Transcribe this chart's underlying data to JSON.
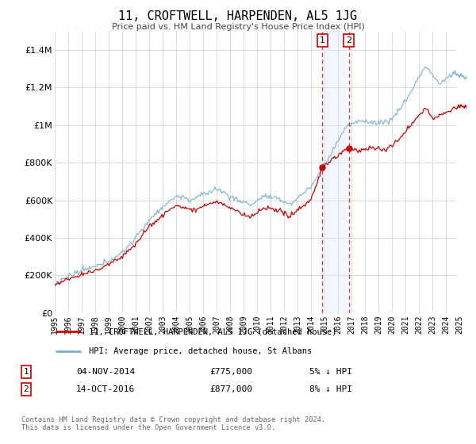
{
  "title": "11, CROFTWELL, HARPENDEN, AL5 1JG",
  "subtitle": "Price paid vs. HM Land Registry's House Price Index (HPI)",
  "legend_label_red": "11, CROFTWELL, HARPENDEN, AL5 1JG (detached house)",
  "legend_label_blue": "HPI: Average price, detached house, St Albans",
  "transaction1_date": "04-NOV-2014",
  "transaction1_price": "£775,000",
  "transaction1_hpi": "5% ↓ HPI",
  "transaction2_date": "14-OCT-2016",
  "transaction2_price": "£877,000",
  "transaction2_hpi": "8% ↓ HPI",
  "footer": "Contains HM Land Registry data © Crown copyright and database right 2024.\nThis data is licensed under the Open Government Licence v3.0.",
  "red_color": "#cc0000",
  "blue_color": "#7ab0d4",
  "highlight_color": "#d8eaf7",
  "transaction1_x": 2014.83,
  "transaction2_x": 2016.79,
  "xmin": 1995.0,
  "xmax": 2025.5,
  "ymin": 0,
  "ymax": 1500000
}
